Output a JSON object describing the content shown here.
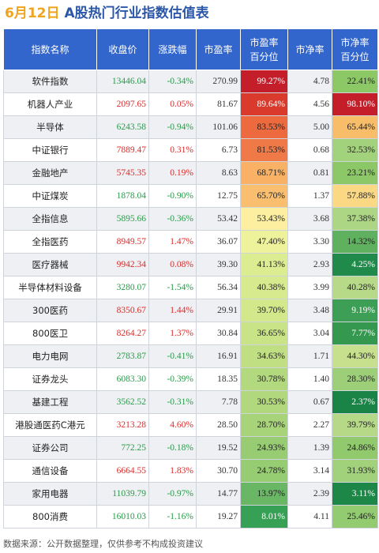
{
  "header": {
    "date": "6月12日",
    "title": "A股热门行业指数估值表"
  },
  "columns": [
    "指数名称",
    "收盘价",
    "涨跌幅",
    "市盈率",
    "市盈率\n百分位",
    "市净率",
    "市净率\n百分位"
  ],
  "rows": [
    {
      "name": "软件指数",
      "close": "13446.04",
      "chg": "-0.34%",
      "pe": "270.99",
      "pe_pct": "99.27%",
      "pb": "4.78",
      "pb_pct": "22.41%",
      "pe_color": "#c41e2a",
      "pb_color": "#8cc866"
    },
    {
      "name": "机器人产业",
      "close": "2097.65",
      "chg": "0.05%",
      "pe": "81.67",
      "pe_pct": "89.64%",
      "pb": "4.56",
      "pb_pct": "98.10%",
      "pe_color": "#d93a2b",
      "pb_color": "#c41e2a"
    },
    {
      "name": "半导体",
      "close": "6243.58",
      "chg": "-0.94%",
      "pe": "101.06",
      "pe_pct": "83.53%",
      "pb": "5.00",
      "pb_pct": "65.44%",
      "pe_color": "#ec6a3e",
      "pb_color": "#f8bd68"
    },
    {
      "name": "中证银行",
      "close": "7889.47",
      "chg": "0.31%",
      "pe": "6.73",
      "pe_pct": "81.53%",
      "pb": "0.68",
      "pb_pct": "32.53%",
      "pe_color": "#ef7a48",
      "pb_color": "#a3d27c"
    },
    {
      "name": "金融地产",
      "close": "5745.35",
      "chg": "0.19%",
      "pe": "8.63",
      "pe_pct": "68.71%",
      "pb": "0.81",
      "pb_pct": "23.21%",
      "pe_color": "#f8b165",
      "pb_color": "#8dc868"
    },
    {
      "name": "中证煤炭",
      "close": "1878.04",
      "chg": "-0.90%",
      "pe": "12.75",
      "pe_pct": "65.70%",
      "pb": "1.37",
      "pb_pct": "57.88%",
      "pe_color": "#f9bf6f",
      "pb_color": "#fbd884"
    },
    {
      "name": "全指信息",
      "close": "5895.66",
      "chg": "-0.36%",
      "pe": "53.42",
      "pe_pct": "53.43%",
      "pb": "3.68",
      "pb_pct": "37.38%",
      "pe_color": "#fcf0a0",
      "pb_color": "#acd683"
    },
    {
      "name": "全指医药",
      "close": "8949.57",
      "chg": "1.47%",
      "pe": "36.07",
      "pe_pct": "47.40%",
      "pb": "3.30",
      "pb_pct": "14.32%",
      "pe_color": "#eef29a",
      "pb_color": "#5fb15f"
    },
    {
      "name": "医疗器械",
      "close": "9942.34",
      "chg": "0.08%",
      "pe": "39.30",
      "pe_pct": "41.13%",
      "pb": "2.93",
      "pb_pct": "4.25%",
      "pe_color": "#dcec90",
      "pb_color": "#1f8a4a"
    },
    {
      "name": "半导体材料设备",
      "close": "3280.07",
      "chg": "-1.54%",
      "pe": "56.34",
      "pe_pct": "40.38%",
      "pb": "3.99",
      "pb_pct": "40.28%",
      "pe_color": "#d8ea8e",
      "pb_color": "#b7da88"
    },
    {
      "name": "300医药",
      "close": "8350.67",
      "chg": "1.44%",
      "pe": "29.91",
      "pe_pct": "39.70%",
      "pb": "3.48",
      "pb_pct": "9.19%",
      "pe_color": "#d3e78b",
      "pb_color": "#3d9e55"
    },
    {
      "name": "800医卫",
      "close": "8264.27",
      "chg": "1.37%",
      "pe": "30.84",
      "pe_pct": "36.65%",
      "pb": "3.04",
      "pb_pct": "7.77%",
      "pe_color": "#c9e387",
      "pb_color": "#34984f"
    },
    {
      "name": "电力电网",
      "close": "2783.87",
      "chg": "-0.41%",
      "pe": "16.91",
      "pe_pct": "34.63%",
      "pb": "1.71",
      "pb_pct": "44.30%",
      "pe_color": "#c0df82",
      "pb_color": "#c6e08d"
    },
    {
      "name": "证券龙头",
      "close": "6083.30",
      "chg": "-0.39%",
      "pe": "18.35",
      "pe_pct": "30.78%",
      "pb": "1.40",
      "pb_pct": "28.30%",
      "pe_color": "#b2d97d",
      "pb_color": "#9ccf78"
    },
    {
      "name": "基建工程",
      "close": "3562.52",
      "chg": "-0.31%",
      "pe": "7.78",
      "pe_pct": "30.53%",
      "pb": "0.67",
      "pb_pct": "2.37%",
      "pe_color": "#b1d87c",
      "pb_color": "#1a8446"
    },
    {
      "name": "港股通医药C港元",
      "close": "3213.28",
      "chg": "4.60%",
      "pe": "28.50",
      "pe_pct": "28.70%",
      "pb": "2.27",
      "pb_pct": "39.79%",
      "pe_color": "#a8d479",
      "pb_color": "#b5d987"
    },
    {
      "name": "证券公司",
      "close": "772.25",
      "chg": "-0.18%",
      "pe": "19.52",
      "pe_pct": "24.93%",
      "pb": "1.39",
      "pb_pct": "24.86%",
      "pe_color": "#97cc73",
      "pb_color": "#90ca6d"
    },
    {
      "name": "通信设备",
      "close": "6664.55",
      "chg": "1.83%",
      "pe": "30.70",
      "pe_pct": "24.78%",
      "pb": "3.14",
      "pb_pct": "31.93%",
      "pe_color": "#96cc72",
      "pb_color": "#a1d17b"
    },
    {
      "name": "家用电器",
      "close": "11039.79",
      "chg": "-0.97%",
      "pe": "14.77",
      "pe_pct": "13.97%",
      "pb": "2.39",
      "pb_pct": "3.11%",
      "pe_color": "#69b764",
      "pb_color": "#1d8748"
    },
    {
      "name": "800消费",
      "close": "16010.03",
      "chg": "-1.16%",
      "pe": "19.27",
      "pe_pct": "8.01%",
      "pb": "4.11",
      "pb_pct": "25.46%",
      "pe_color": "#36a154",
      "pb_color": "#92cb70"
    }
  ],
  "footer": "数据来源：公开数据整理，仅供参考不构成投资建议"
}
